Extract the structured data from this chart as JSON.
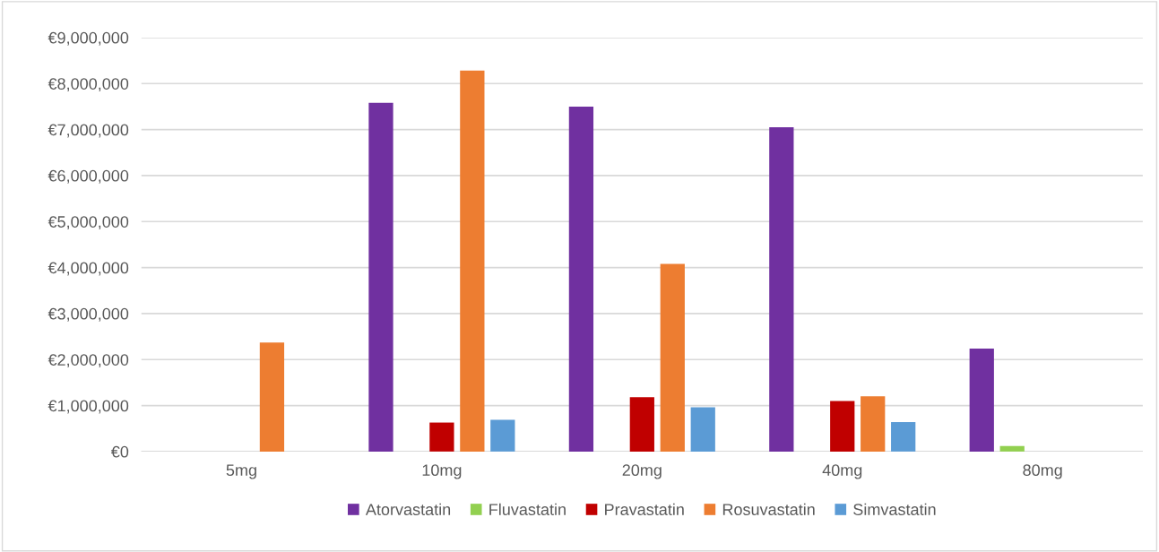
{
  "chart_data": {
    "type": "bar",
    "categories": [
      "5mg",
      "10mg",
      "20mg",
      "40mg",
      "80mg"
    ],
    "series": [
      {
        "name": "Atorvastatin",
        "color": "#7030a0",
        "values": [
          null,
          7580000,
          7500000,
          7050000,
          2240000
        ]
      },
      {
        "name": "Fluvastatin",
        "color": "#92d050",
        "values": [
          null,
          null,
          null,
          null,
          120000
        ]
      },
      {
        "name": "Pravastatin",
        "color": "#c00000",
        "values": [
          null,
          630000,
          1180000,
          1100000,
          null
        ]
      },
      {
        "name": "Rosuvastatin",
        "color": "#ed7d31",
        "values": [
          2370000,
          8280000,
          4080000,
          1200000,
          null
        ]
      },
      {
        "name": "Simvastatin",
        "color": "#5b9bd5",
        "values": [
          null,
          690000,
          960000,
          640000,
          null
        ]
      }
    ],
    "ylim": [
      0,
      9000000
    ],
    "yticks": [
      {
        "value": 0,
        "label": "€0"
      },
      {
        "value": 1000000,
        "label": "€1,000,000"
      },
      {
        "value": 2000000,
        "label": "€2,000,000"
      },
      {
        "value": 3000000,
        "label": "€3,000,000"
      },
      {
        "value": 4000000,
        "label": "€4,000,000"
      },
      {
        "value": 5000000,
        "label": "€5,000,000"
      },
      {
        "value": 6000000,
        "label": "€6,000,000"
      },
      {
        "value": 7000000,
        "label": "€7,000,000"
      },
      {
        "value": 8000000,
        "label": "€8,000,000"
      },
      {
        "value": 9000000,
        "label": "€9,000,000"
      }
    ],
    "grid": "y",
    "legend": "bottom"
  }
}
